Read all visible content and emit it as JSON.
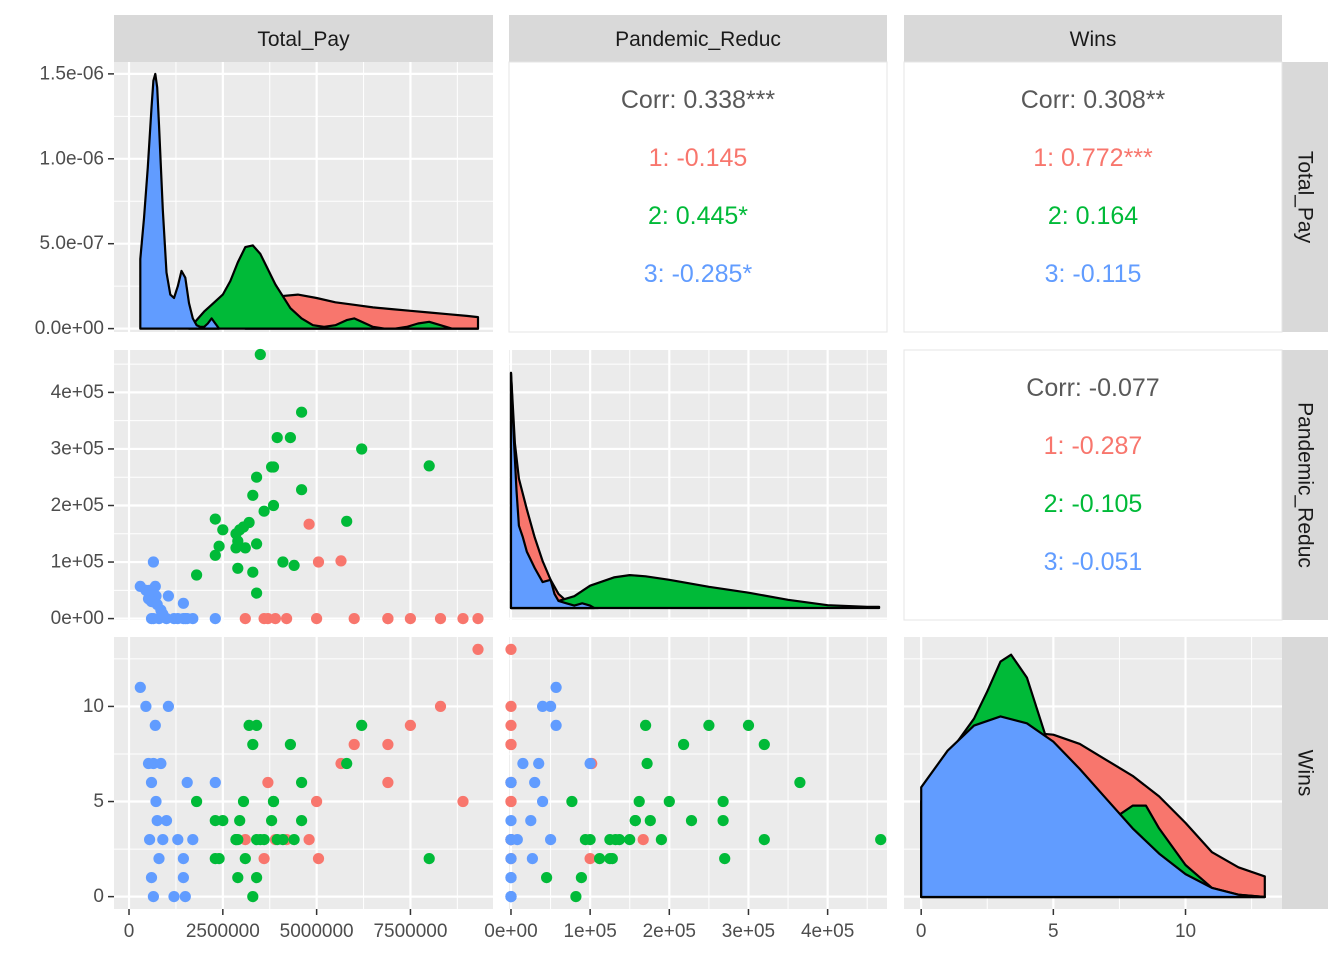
{
  "chart_data": {
    "type": "scatter",
    "title": "",
    "plot": "pairs",
    "variables": [
      "Total_Pay",
      "Pandemic_Reduc",
      "Wins"
    ],
    "grid": true,
    "groups": [
      {
        "name": "1",
        "color": "#F8766D"
      },
      {
        "name": "2",
        "color": "#00BA38"
      },
      {
        "name": "3",
        "color": "#619CFF"
      }
    ],
    "correlations": [
      {
        "vars": [
          "Total_Pay",
          "Pandemic_Reduc"
        ],
        "lines": [
          {
            "text": "Corr: 0.338***",
            "color": "#595959"
          },
          {
            "text": "1: -0.145",
            "color": "#F8766D"
          },
          {
            "text": "2: 0.445*",
            "color": "#00BA38"
          },
          {
            "text": "3: -0.285*",
            "color": "#619CFF"
          }
        ]
      },
      {
        "vars": [
          "Total_Pay",
          "Wins"
        ],
        "lines": [
          {
            "text": "Corr: 0.308**",
            "color": "#595959"
          },
          {
            "text": "1: 0.772***",
            "color": "#F8766D"
          },
          {
            "text": "2: 0.164",
            "color": "#00BA38"
          },
          {
            "text": "3: -0.115",
            "color": "#619CFF"
          }
        ]
      },
      {
        "vars": [
          "Pandemic_Reduc",
          "Wins"
        ],
        "lines": [
          {
            "text": "Corr: -0.077",
            "color": "#595959"
          },
          {
            "text": "1: -0.287",
            "color": "#F8766D"
          },
          {
            "text": "2: -0.105",
            "color": "#00BA38"
          },
          {
            "text": "3: -0.051",
            "color": "#619CFF"
          }
        ]
      }
    ],
    "axes": {
      "Total_Pay": {
        "lim": [
          -400000,
          9700000
        ],
        "ticks": [
          0,
          2500000,
          5000000,
          7500000
        ],
        "tick_labels": [
          "0",
          "2500000",
          "5000000",
          "7500000"
        ]
      },
      "Pandemic_Reduc": {
        "lim": [
          -2500,
          475000
        ],
        "ticks": [
          0,
          100000,
          200000,
          300000,
          400000
        ],
        "tick_labels": [
          "0e+00",
          "1e+05",
          "2e+05",
          "3e+05",
          "4e+05"
        ]
      },
      "Wins": {
        "lim": [
          -0.65,
          13.65
        ],
        "ticks": [
          0,
          5,
          10
        ],
        "tick_labels": [
          "0",
          "5",
          "10"
        ]
      },
      "Total_Pay_density": {
        "lim": [
          -2e-08,
          1.57e-06
        ],
        "ticks": [
          0,
          5e-07,
          1e-06,
          1.5e-06
        ],
        "tick_labels": [
          "0.0e+00",
          "5.0e-07",
          "1.0e-06",
          "1.5e-06"
        ]
      }
    },
    "densities": {
      "Total_Pay": {
        "1": {
          "x": [
            3100000,
            3600000,
            4000000,
            4500000,
            5000000,
            5500000,
            6000000,
            6500000,
            7000000,
            7500000,
            8000000,
            8500000,
            9000000,
            9300000
          ],
          "y": [
            0,
            1.3e-07,
            1.9e-07,
            2e-07,
            1.8e-07,
            1.55e-07,
            1.4e-07,
            1.25e-07,
            1.15e-07,
            1.05e-07,
            9.5e-08,
            8.5e-08,
            7.5e-08,
            6.8e-08
          ]
        },
        "2": {
          "x": [
            1600000,
            1800000,
            2000000,
            2200000,
            2500000,
            2700000,
            2900000,
            3100000,
            3300000,
            3500000,
            3700000,
            3900000,
            4100000,
            4300000,
            4600000,
            4900000,
            5200000,
            5500000,
            5800000,
            6000000,
            6200000,
            6500000,
            6800000,
            7100000,
            7400000,
            7700000,
            8000000,
            8300000,
            8600000,
            9300000
          ],
          "y": [
            0,
            5e-08,
            1e-07,
            1.4e-07,
            2e-07,
            2.8e-07,
            3.9e-07,
            4.8e-07,
            4.9e-07,
            4.4e-07,
            3.5e-07,
            2.6e-07,
            1.9e-07,
            1.2e-07,
            6e-08,
            2e-08,
            1e-08,
            2e-08,
            5e-08,
            6e-08,
            4e-08,
            1e-08,
            0,
            0,
            1e-08,
            3e-08,
            4e-08,
            2e-08,
            0,
            0
          ]
        },
        "3": {
          "x": [
            300000,
            400000,
            500000,
            600000,
            650000,
            700000,
            750000,
            800000,
            850000,
            900000,
            1000000,
            1100000,
            1200000,
            1300000,
            1400000,
            1500000,
            1600000,
            1700000,
            1800000,
            1900000,
            2000000,
            2100000,
            2200000,
            2300000,
            2400000
          ],
          "y": [
            4.1e-07,
            6.5e-07,
            9.5e-07,
            1.3e-06,
            1.46e-06,
            1.5e-06,
            1.42e-06,
            1.2e-06,
            9.5e-07,
            7e-07,
            3.3e-07,
            2e-07,
            1.8e-07,
            2.5e-07,
            3.4e-07,
            3e-07,
            1.5e-07,
            6e-08,
            2e-08,
            1e-08,
            1e-08,
            3e-08,
            6e-08,
            3e-08,
            0
          ]
        }
      },
      "Pandemic_Reduc": {
        "1": {
          "x": [
            0,
            5000,
            10000,
            20000,
            30000,
            40000,
            50000,
            60000,
            70000,
            80000,
            90000,
            100000,
            110000
          ],
          "y": [
            1.0,
            0.7,
            0.55,
            0.42,
            0.3,
            0.2,
            0.12,
            0.06,
            0.03,
            0.02,
            0.02,
            0.01,
            0
          ]
        },
        "2": {
          "x": [
            0,
            50000,
            80000,
            100000,
            130000,
            150000,
            170000,
            200000,
            250000,
            300000,
            350000,
            400000,
            450000,
            465000
          ],
          "y": [
            0,
            0.02,
            0.05,
            0.095,
            0.13,
            0.14,
            0.135,
            0.12,
            0.09,
            0.065,
            0.035,
            0.012,
            0.005,
            0.005
          ]
        },
        "3": {
          "x": [
            0,
            2000,
            4000,
            7000,
            10000,
            15000,
            20000,
            30000,
            40000,
            50000,
            55000,
            60000,
            70000,
            80000,
            90000,
            100000,
            105000
          ],
          "y": [
            1.0,
            0.85,
            0.7,
            0.5,
            0.35,
            0.3,
            0.24,
            0.17,
            0.11,
            0.12,
            0.06,
            0.03,
            0.02,
            0.01,
            0.02,
            0.01,
            0
          ]
        }
      },
      "Wins": {
        "1": {
          "x": [
            0,
            1,
            2,
            3,
            4,
            5,
            6,
            7,
            8,
            9,
            10,
            11,
            12,
            13
          ],
          "y": [
            0.185,
            0.26,
            0.318,
            0.35,
            0.36,
            0.355,
            0.335,
            0.3,
            0.265,
            0.22,
            0.162,
            0.098,
            0.065,
            0.045
          ]
        },
        "2": {
          "x": [
            0,
            1,
            2,
            2.5,
            3,
            3.4,
            4,
            4.5,
            5,
            5.5,
            6,
            7,
            7.5,
            8,
            8.5,
            9,
            10,
            11,
            12,
            13
          ],
          "y": [
            0.21,
            0.31,
            0.39,
            0.45,
            0.515,
            0.53,
            0.48,
            0.39,
            0.3,
            0.25,
            0.2,
            0.17,
            0.18,
            0.2,
            0.2,
            0.15,
            0.07,
            0.02,
            0.005,
            0
          ]
        },
        "3": {
          "x": [
            0,
            1,
            2,
            3,
            4,
            5,
            6,
            7,
            8,
            9,
            10,
            11,
            12,
            13
          ],
          "y": [
            0.24,
            0.32,
            0.375,
            0.395,
            0.38,
            0.34,
            0.28,
            0.215,
            0.15,
            0.095,
            0.05,
            0.02,
            0.005,
            0
          ]
        }
      }
    },
    "density_ylim": {
      "Pandemic_Reduc": [
        0,
        1.08
      ],
      "Wins": [
        0,
        0.56
      ]
    },
    "points": [
      {
        "g": "1",
        "Total_Pay": 3100000,
        "Pandemic_Reduc": 0,
        "Wins": 3
      },
      {
        "g": "1",
        "Total_Pay": 3700000,
        "Pandemic_Reduc": 0,
        "Wins": 6
      },
      {
        "g": "1",
        "Total_Pay": 3600000,
        "Pandemic_Reduc": 0,
        "Wins": 2
      },
      {
        "g": "1",
        "Total_Pay": 3900000,
        "Pandemic_Reduc": 0,
        "Wins": 3
      },
      {
        "g": "1",
        "Total_Pay": 4200000,
        "Pandemic_Reduc": 0,
        "Wins": 3
      },
      {
        "g": "1",
        "Total_Pay": 4800000,
        "Pandemic_Reduc": 167000,
        "Wins": 3
      },
      {
        "g": "1",
        "Total_Pay": 5000000,
        "Pandemic_Reduc": 0,
        "Wins": 5
      },
      {
        "g": "1",
        "Total_Pay": 5050000,
        "Pandemic_Reduc": 100000,
        "Wins": 2
      },
      {
        "g": "1",
        "Total_Pay": 5650000,
        "Pandemic_Reduc": 102000,
        "Wins": 7
      },
      {
        "g": "1",
        "Total_Pay": 6000000,
        "Pandemic_Reduc": 0,
        "Wins": 8
      },
      {
        "g": "1",
        "Total_Pay": 6900000,
        "Pandemic_Reduc": 0,
        "Wins": 6
      },
      {
        "g": "1",
        "Total_Pay": 6900000,
        "Pandemic_Reduc": 0,
        "Wins": 8
      },
      {
        "g": "1",
        "Total_Pay": 7500000,
        "Pandemic_Reduc": 0,
        "Wins": 9
      },
      {
        "g": "1",
        "Total_Pay": 8300000,
        "Pandemic_Reduc": 0,
        "Wins": 10
      },
      {
        "g": "1",
        "Total_Pay": 8900000,
        "Pandemic_Reduc": 0,
        "Wins": 5
      },
      {
        "g": "1",
        "Total_Pay": 9300000,
        "Pandemic_Reduc": 0,
        "Wins": 13
      },
      {
        "g": "2",
        "Total_Pay": 3500000,
        "Pandemic_Reduc": 467000,
        "Wins": 3
      },
      {
        "g": "2",
        "Total_Pay": 4600000,
        "Pandemic_Reduc": 365000,
        "Wins": 6
      },
      {
        "g": "2",
        "Total_Pay": 4300000,
        "Pandemic_Reduc": 320000,
        "Wins": 8
      },
      {
        "g": "2",
        "Total_Pay": 3950000,
        "Pandemic_Reduc": 320000,
        "Wins": 3
      },
      {
        "g": "2",
        "Total_Pay": 6200000,
        "Pandemic_Reduc": 300000,
        "Wins": 9
      },
      {
        "g": "2",
        "Total_Pay": 8000000,
        "Pandemic_Reduc": 270000,
        "Wins": 2
      },
      {
        "g": "2",
        "Total_Pay": 3800000,
        "Pandemic_Reduc": 268000,
        "Wins": 4
      },
      {
        "g": "2",
        "Total_Pay": 3850000,
        "Pandemic_Reduc": 268000,
        "Wins": 5
      },
      {
        "g": "2",
        "Total_Pay": 3400000,
        "Pandemic_Reduc": 250000,
        "Wins": 9
      },
      {
        "g": "2",
        "Total_Pay": 4600000,
        "Pandemic_Reduc": 228000,
        "Wins": 4
      },
      {
        "g": "2",
        "Total_Pay": 3300000,
        "Pandemic_Reduc": 218000,
        "Wins": 8
      },
      {
        "g": "2",
        "Total_Pay": 3850000,
        "Pandemic_Reduc": 200000,
        "Wins": 5
      },
      {
        "g": "2",
        "Total_Pay": 3600000,
        "Pandemic_Reduc": 190000,
        "Wins": 3
      },
      {
        "g": "2",
        "Total_Pay": 2300000,
        "Pandemic_Reduc": 176000,
        "Wins": 4
      },
      {
        "g": "2",
        "Total_Pay": 5800000,
        "Pandemic_Reduc": 172000,
        "Wins": 7
      },
      {
        "g": "2",
        "Total_Pay": 3200000,
        "Pandemic_Reduc": 170000,
        "Wins": 9
      },
      {
        "g": "2",
        "Total_Pay": 3050000,
        "Pandemic_Reduc": 162000,
        "Wins": 5
      },
      {
        "g": "2",
        "Total_Pay": 2950000,
        "Pandemic_Reduc": 157000,
        "Wins": 4
      },
      {
        "g": "2",
        "Total_Pay": 2850000,
        "Pandemic_Reduc": 150000,
        "Wins": 3
      },
      {
        "g": "2",
        "Total_Pay": 2500000,
        "Pandemic_Reduc": 157000,
        "Wins": 4
      },
      {
        "g": "2",
        "Total_Pay": 2900000,
        "Pandemic_Reduc": 137000,
        "Wins": 3
      },
      {
        "g": "2",
        "Total_Pay": 3400000,
        "Pandemic_Reduc": 132000,
        "Wins": 3
      },
      {
        "g": "2",
        "Total_Pay": 2400000,
        "Pandemic_Reduc": 128000,
        "Wins": 2
      },
      {
        "g": "2",
        "Total_Pay": 2850000,
        "Pandemic_Reduc": 125000,
        "Wins": 3
      },
      {
        "g": "2",
        "Total_Pay": 3100000,
        "Pandemic_Reduc": 125000,
        "Wins": 2
      },
      {
        "g": "2",
        "Total_Pay": 2300000,
        "Pandemic_Reduc": 112000,
        "Wins": 2
      },
      {
        "g": "2",
        "Total_Pay": 4100000,
        "Pandemic_Reduc": 100000,
        "Wins": 3
      },
      {
        "g": "2",
        "Total_Pay": 4400000,
        "Pandemic_Reduc": 94000,
        "Wins": 3
      },
      {
        "g": "2",
        "Total_Pay": 2900000,
        "Pandemic_Reduc": 89000,
        "Wins": 1
      },
      {
        "g": "2",
        "Total_Pay": 3300000,
        "Pandemic_Reduc": 82000,
        "Wins": 0
      },
      {
        "g": "2",
        "Total_Pay": 1800000,
        "Pandemic_Reduc": 77000,
        "Wins": 5
      },
      {
        "g": "2",
        "Total_Pay": 3400000,
        "Pandemic_Reduc": 45000,
        "Wins": 1
      },
      {
        "g": "3",
        "Total_Pay": 300000,
        "Pandemic_Reduc": 57000,
        "Wins": 11
      },
      {
        "g": "3",
        "Total_Pay": 450000,
        "Pandemic_Reduc": 50000,
        "Wins": 10
      },
      {
        "g": "3",
        "Total_Pay": 520000,
        "Pandemic_Reduc": 35000,
        "Wins": 7
      },
      {
        "g": "3",
        "Total_Pay": 650000,
        "Pandemic_Reduc": 100000,
        "Wins": 7
      },
      {
        "g": "3",
        "Total_Pay": 700000,
        "Pandemic_Reduc": 57000,
        "Wins": 9
      },
      {
        "g": "3",
        "Total_Pay": 720000,
        "Pandemic_Reduc": 40000,
        "Wins": 5
      },
      {
        "g": "3",
        "Total_Pay": 600000,
        "Pandemic_Reduc": 30000,
        "Wins": 6
      },
      {
        "g": "3",
        "Total_Pay": 550000,
        "Pandemic_Reduc": 50000,
        "Wins": 3
      },
      {
        "g": "3",
        "Total_Pay": 750000,
        "Pandemic_Reduc": 25000,
        "Wins": 4
      },
      {
        "g": "3",
        "Total_Pay": 800000,
        "Pandemic_Reduc": 0,
        "Wins": 2
      },
      {
        "g": "3",
        "Total_Pay": 850000,
        "Pandemic_Reduc": 15000,
        "Wins": 7
      },
      {
        "g": "3",
        "Total_Pay": 1050000,
        "Pandemic_Reduc": 40000,
        "Wins": 10
      },
      {
        "g": "3",
        "Total_Pay": 1300000,
        "Pandemic_Reduc": 0,
        "Wins": 3
      },
      {
        "g": "3",
        "Total_Pay": 1450000,
        "Pandemic_Reduc": 27000,
        "Wins": 2
      },
      {
        "g": "3",
        "Total_Pay": 1550000,
        "Pandemic_Reduc": 0,
        "Wins": 6
      },
      {
        "g": "3",
        "Total_Pay": 1700000,
        "Pandemic_Reduc": 0,
        "Wins": 3
      },
      {
        "g": "3",
        "Total_Pay": 2300000,
        "Pandemic_Reduc": 0,
        "Wins": 6
      },
      {
        "g": "3",
        "Total_Pay": 1000000,
        "Pandemic_Reduc": 0,
        "Wins": 4
      },
      {
        "g": "3",
        "Total_Pay": 900000,
        "Pandemic_Reduc": 8000,
        "Wins": 3
      },
      {
        "g": "3",
        "Total_Pay": 600000,
        "Pandemic_Reduc": 0,
        "Wins": 1
      },
      {
        "g": "3",
        "Total_Pay": 650000,
        "Pandemic_Reduc": 0,
        "Wins": 0
      },
      {
        "g": "3",
        "Total_Pay": 1200000,
        "Pandemic_Reduc": 0,
        "Wins": 0
      },
      {
        "g": "3",
        "Total_Pay": 1450000,
        "Pandemic_Reduc": 0,
        "Wins": 1
      },
      {
        "g": "3",
        "Total_Pay": 1500000,
        "Pandemic_Reduc": 0,
        "Wins": 0
      }
    ]
  }
}
